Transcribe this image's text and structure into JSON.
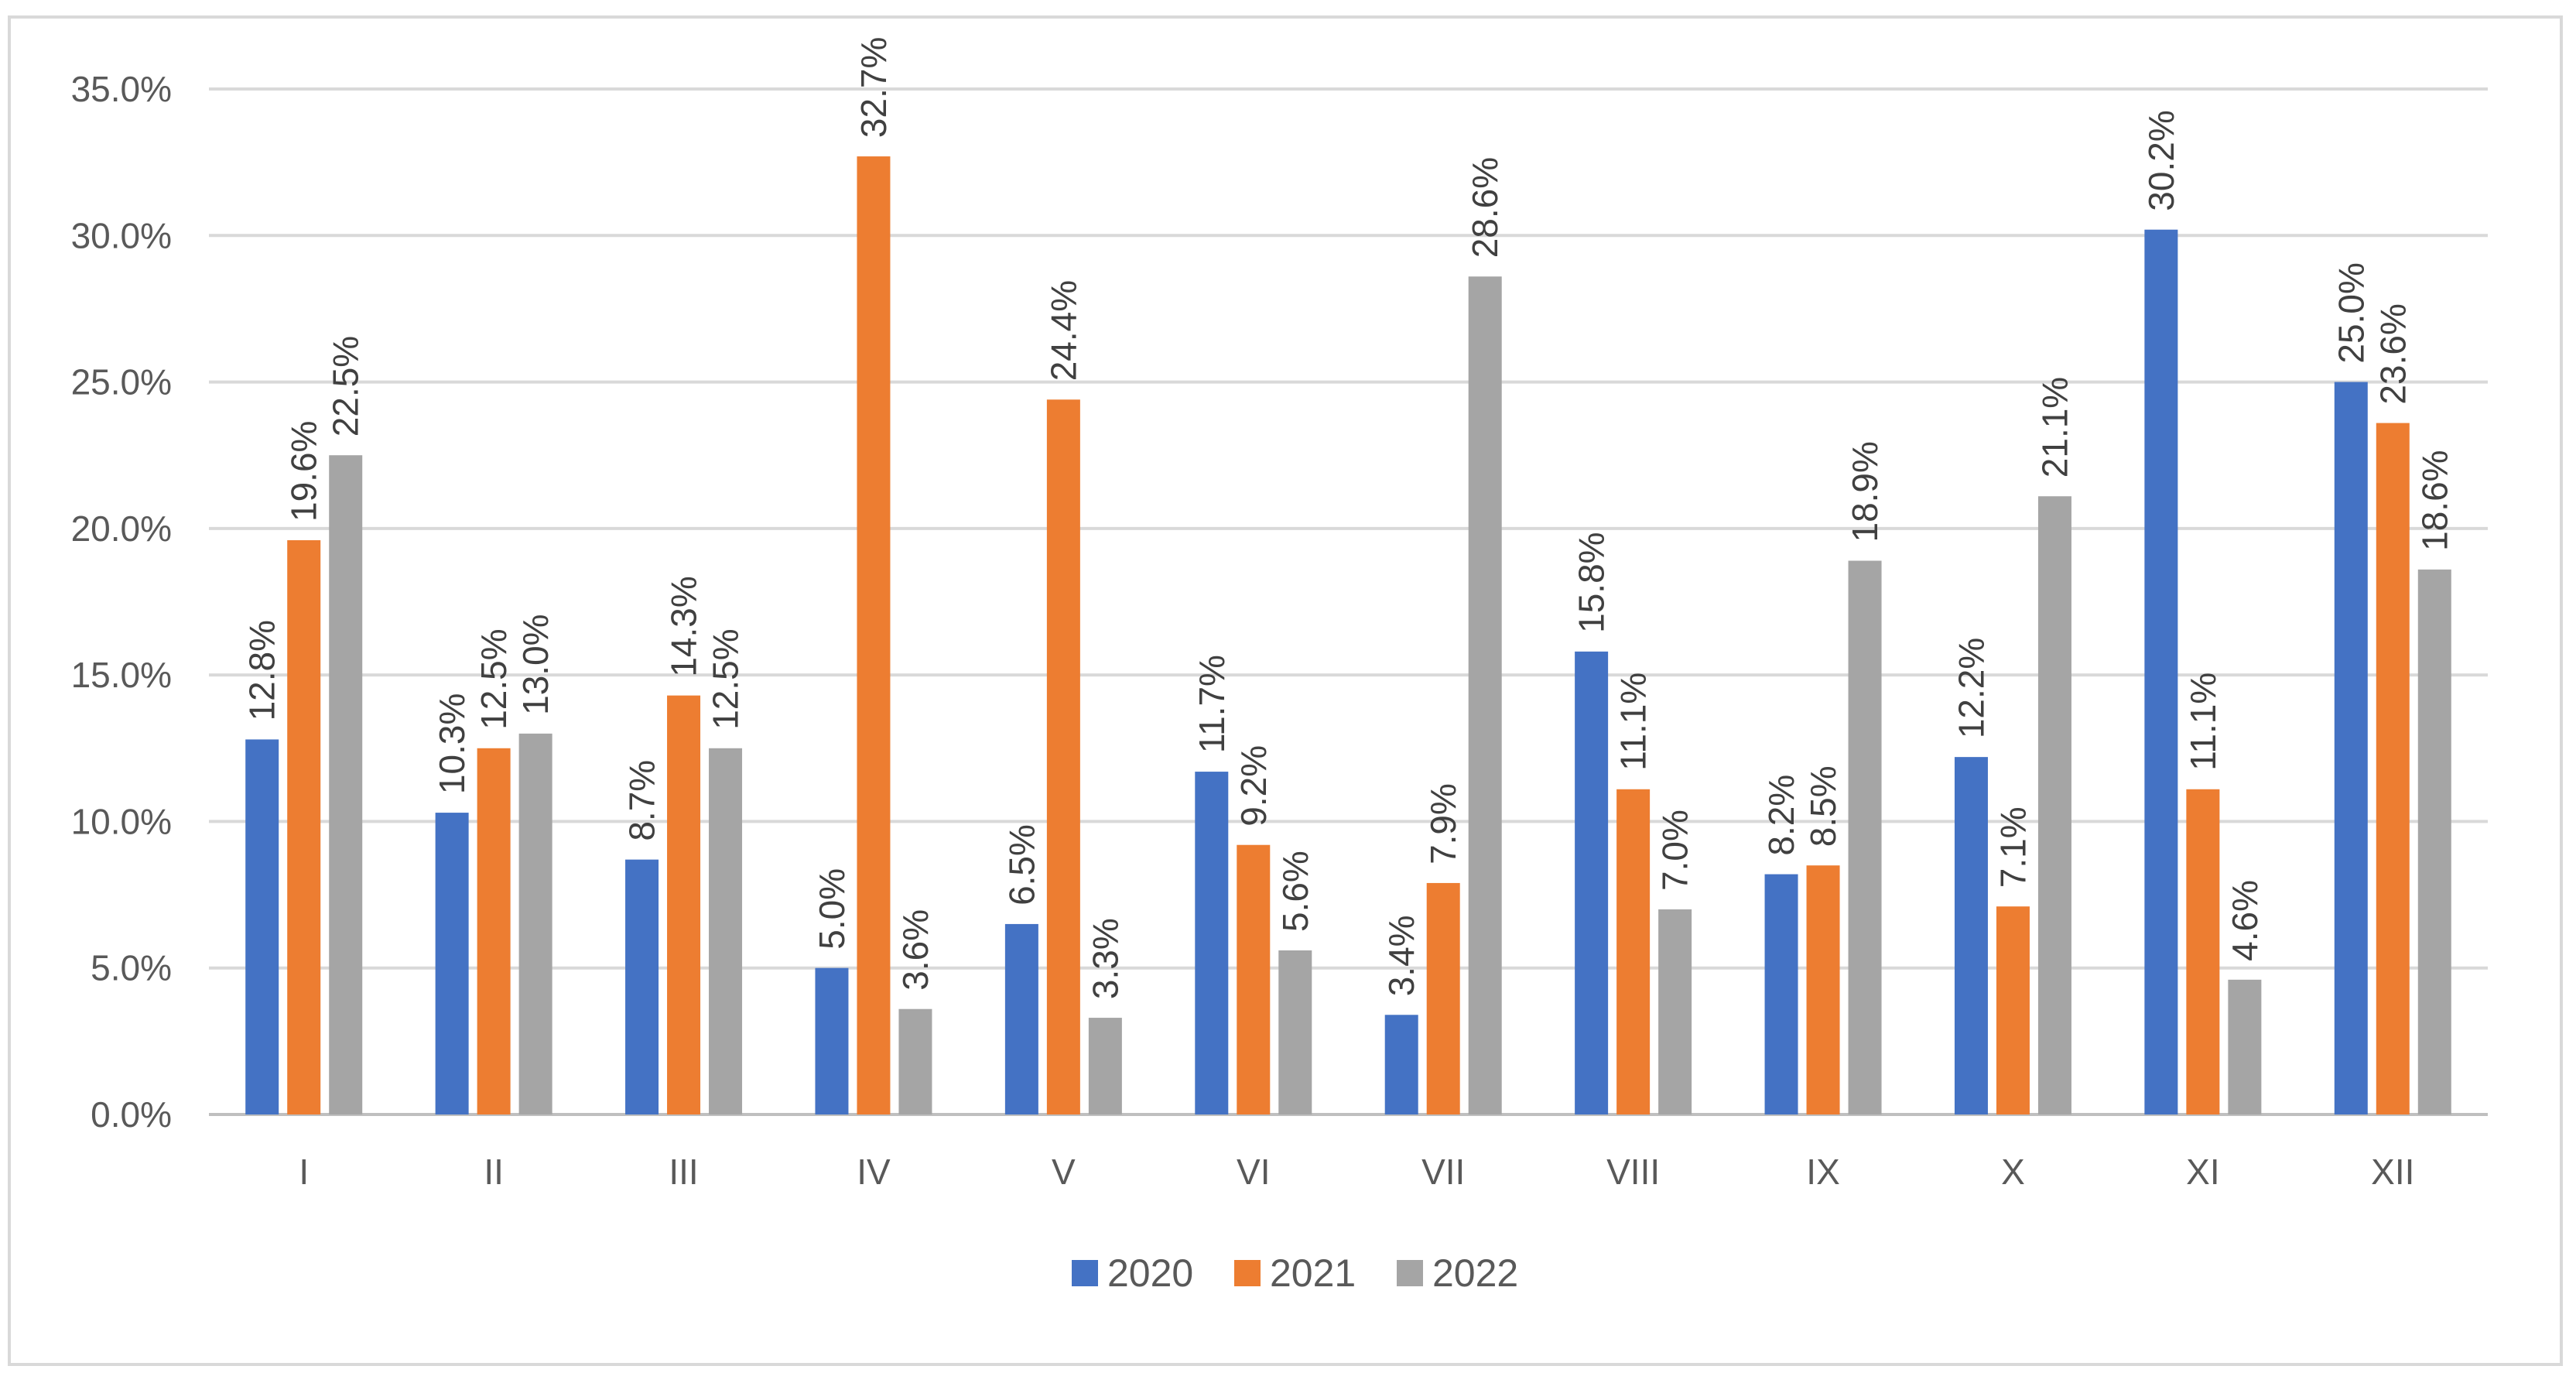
{
  "chart_data": {
    "type": "bar",
    "title": "",
    "xlabel": "",
    "ylabel": "",
    "categories": [
      "I",
      "II",
      "III",
      "IV",
      "V",
      "VI",
      "VII",
      "VIII",
      "IX",
      "X",
      "XI",
      "XII"
    ],
    "series": [
      {
        "name": "2020",
        "color": "#4472c4",
        "values": [
          12.8,
          10.3,
          8.7,
          5.0,
          6.5,
          11.7,
          3.4,
          15.8,
          8.2,
          12.2,
          30.2,
          25.0
        ],
        "labels": [
          "12.8%",
          "10.3%",
          "8.7%",
          "5.0%",
          "6.5%",
          "11.7%",
          "3.4%",
          "15.8%",
          "8.2%",
          "12.2%",
          "30.2%",
          "25.0%"
        ]
      },
      {
        "name": "2021",
        "color": "#ed7d31",
        "values": [
          19.6,
          12.5,
          14.3,
          32.7,
          24.4,
          9.2,
          7.9,
          11.1,
          8.5,
          7.1,
          11.1,
          23.6
        ],
        "labels": [
          "19.6%",
          "12.5%",
          "14.3%",
          "32.7%",
          "24.4%",
          "9.2%",
          "7.9%",
          "11.1%",
          "8.5%",
          "7.1%",
          "11.1%",
          "23.6%"
        ]
      },
      {
        "name": "2022",
        "color": "#a5a5a5",
        "values": [
          22.5,
          13.0,
          12.5,
          3.6,
          3.3,
          5.6,
          28.6,
          7.0,
          18.9,
          21.1,
          4.6,
          18.6
        ],
        "labels": [
          "22.5%",
          "13.0%",
          "12.5%",
          "3.6%",
          "3.3%",
          "5.6%",
          "28.6%",
          "7.0%",
          "18.9%",
          "21.1%",
          "4.6%",
          "18.6%"
        ]
      }
    ],
    "ylim": [
      0,
      35
    ],
    "yticks": [
      0,
      5,
      10,
      15,
      20,
      25,
      30,
      35
    ],
    "ytick_labels": [
      "0.0%",
      "5.0%",
      "10.0%",
      "15.0%",
      "20.0%",
      "25.0%",
      "30.0%",
      "35.0%"
    ],
    "grid": true,
    "gridline_color": "#d9d9d9",
    "legend_position": "bottom",
    "data_labels_rotated": true
  }
}
